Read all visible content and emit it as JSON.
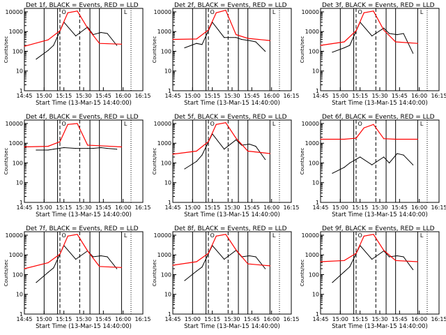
{
  "figure_title": "",
  "chart_data": [
    {
      "type": "line",
      "title": "Det 1f, BLACK = Events, RED = LLD",
      "xlabel": "Start Time (13-Mar-15 14:40:00)",
      "ylabel": "Counts/sec",
      "yscale": "log",
      "ylim": [
        1,
        15000
      ],
      "series": [
        {
          "name": "Events",
          "color": "#000000",
          "points": [
            [
              14.9,
              40
            ],
            [
              15.05,
              110
            ],
            [
              15.12,
              200
            ],
            [
              15.25,
              3000
            ],
            [
              15.4,
              600
            ],
            [
              15.55,
              1700
            ],
            [
              15.62,
              700
            ],
            [
              15.72,
              900
            ],
            [
              15.8,
              800
            ],
            [
              15.92,
              200
            ]
          ]
        },
        {
          "name": "LLD",
          "color": "#ff0000",
          "points": [
            [
              14.75,
              180
            ],
            [
              15.05,
              380
            ],
            [
              15.2,
              1100
            ],
            [
              15.3,
              9000
            ],
            [
              15.42,
              11000
            ],
            [
              15.55,
              1500
            ],
            [
              15.7,
              250
            ],
            [
              15.98,
              230
            ]
          ]
        }
      ]
    },
    {
      "type": "line",
      "title": "Det 2f, BLACK = Events, RED = LLD",
      "xlabel": "Start Time (13-Mar-15 14:40:00)",
      "ylabel": "Counts/sec",
      "yscale": "log",
      "ylim": [
        1,
        15000
      ],
      "series": [
        {
          "name": "Events",
          "color": "#000000",
          "points": [
            [
              14.9,
              150
            ],
            [
              15.05,
              250
            ],
            [
              15.12,
              220
            ],
            [
              15.25,
              3000
            ],
            [
              15.4,
              500
            ],
            [
              15.55,
              500
            ],
            [
              15.62,
              400
            ],
            [
              15.72,
              350
            ],
            [
              15.8,
              300
            ],
            [
              15.92,
              100
            ]
          ]
        },
        {
          "name": "LLD",
          "color": "#ff0000",
          "points": [
            [
              14.75,
              400
            ],
            [
              15.05,
              420
            ],
            [
              15.2,
              1200
            ],
            [
              15.3,
              9000
            ],
            [
              15.42,
              12000
            ],
            [
              15.55,
              700
            ],
            [
              15.7,
              450
            ],
            [
              15.98,
              350
            ]
          ]
        }
      ]
    },
    {
      "type": "line",
      "title": "Det 3f, BLACK = Events, RED = LLD",
      "xlabel": "Start Time (13-Mar-15 14:40:00)",
      "ylabel": "Counts/sec",
      "yscale": "log",
      "ylim": [
        1,
        15000
      ],
      "series": [
        {
          "name": "Events",
          "color": "#000000",
          "points": [
            [
              14.9,
              90
            ],
            [
              15.05,
              150
            ],
            [
              15.12,
              200
            ],
            [
              15.25,
              3000
            ],
            [
              15.4,
              600
            ],
            [
              15.55,
              1500
            ],
            [
              15.62,
              800
            ],
            [
              15.72,
              700
            ],
            [
              15.8,
              800
            ],
            [
              15.92,
              80
            ]
          ]
        },
        {
          "name": "LLD",
          "color": "#ff0000",
          "points": [
            [
              14.75,
              200
            ],
            [
              15.05,
              300
            ],
            [
              15.2,
              1100
            ],
            [
              15.3,
              9000
            ],
            [
              15.42,
              11000
            ],
            [
              15.55,
              1200
            ],
            [
              15.7,
              300
            ],
            [
              15.98,
              250
            ]
          ]
        }
      ]
    },
    {
      "type": "line",
      "title": "Det 4f, BLACK = Events, RED = LLD",
      "xlabel": "Start Time (13-Mar-15 14:40:00)",
      "ylabel": "Counts/sec",
      "yscale": "log",
      "ylim": [
        1,
        15000
      ],
      "series": [
        {
          "name": "Events",
          "color": "#000000",
          "points": [
            [
              14.9,
              450
            ],
            [
              15.05,
              450
            ],
            [
              15.12,
              500
            ],
            [
              15.25,
              600
            ],
            [
              15.4,
              550
            ],
            [
              15.55,
              550
            ],
            [
              15.62,
              550
            ],
            [
              15.72,
              600
            ],
            [
              15.8,
              550
            ],
            [
              15.92,
              500
            ]
          ]
        },
        {
          "name": "LLD",
          "color": "#ff0000",
          "points": [
            [
              14.75,
              650
            ],
            [
              15.05,
              700
            ],
            [
              15.2,
              1200
            ],
            [
              15.3,
              9000
            ],
            [
              15.42,
              10000
            ],
            [
              15.55,
              800
            ],
            [
              15.7,
              750
            ],
            [
              15.98,
              650
            ]
          ]
        }
      ]
    },
    {
      "type": "line",
      "title": "Det 5f, BLACK = Events, RED = LLD",
      "xlabel": "Start Time (13-Mar-15 14:40:00)",
      "ylabel": "Counts/sec",
      "yscale": "log",
      "ylim": [
        1,
        15000
      ],
      "series": [
        {
          "name": "Events",
          "color": "#000000",
          "points": [
            [
              14.9,
              50
            ],
            [
              15.05,
              120
            ],
            [
              15.12,
              250
            ],
            [
              15.25,
              3000
            ],
            [
              15.4,
              500
            ],
            [
              15.55,
              1500
            ],
            [
              15.62,
              800
            ],
            [
              15.72,
              900
            ],
            [
              15.8,
              700
            ],
            [
              15.92,
              150
            ]
          ]
        },
        {
          "name": "LLD",
          "color": "#ff0000",
          "points": [
            [
              14.75,
              280
            ],
            [
              15.05,
              400
            ],
            [
              15.2,
              1200
            ],
            [
              15.3,
              9000
            ],
            [
              15.42,
              11000
            ],
            [
              15.55,
              1800
            ],
            [
              15.7,
              400
            ],
            [
              15.98,
              300
            ]
          ]
        }
      ]
    },
    {
      "type": "line",
      "title": "Det 6f, BLACK = Events, RED = LLD",
      "xlabel": "Start Time (13-Mar-15 14:40:00)",
      "ylabel": "Counts/sec",
      "yscale": "log",
      "ylim": [
        1,
        15000
      ],
      "series": [
        {
          "name": "Events",
          "color": "#000000",
          "points": [
            [
              14.9,
              30
            ],
            [
              15.05,
              60
            ],
            [
              15.12,
              100
            ],
            [
              15.25,
              200
            ],
            [
              15.4,
              80
            ],
            [
              15.55,
              200
            ],
            [
              15.62,
              100
            ],
            [
              15.72,
              300
            ],
            [
              15.8,
              250
            ],
            [
              15.92,
              80
            ]
          ]
        },
        {
          "name": "LLD",
          "color": "#ff0000",
          "points": [
            [
              14.75,
              1600
            ],
            [
              15.05,
              1600
            ],
            [
              15.2,
              1800
            ],
            [
              15.3,
              6000
            ],
            [
              15.42,
              9000
            ],
            [
              15.55,
              1700
            ],
            [
              15.7,
              1600
            ],
            [
              15.98,
              1600
            ]
          ]
        }
      ]
    },
    {
      "type": "line",
      "title": "Det 7f, BLACK = Events, RED = LLD",
      "xlabel": "Start Time (13-Mar-15 14:40:00)",
      "ylabel": "Counts/sec",
      "yscale": "log",
      "ylim": [
        1,
        15000
      ],
      "series": [
        {
          "name": "Events",
          "color": "#000000",
          "points": [
            [
              14.9,
              40
            ],
            [
              15.05,
              130
            ],
            [
              15.12,
              220
            ],
            [
              15.25,
              3000
            ],
            [
              15.4,
              600
            ],
            [
              15.55,
              1600
            ],
            [
              15.62,
              800
            ],
            [
              15.72,
              900
            ],
            [
              15.8,
              800
            ],
            [
              15.92,
              200
            ]
          ]
        },
        {
          "name": "LLD",
          "color": "#ff0000",
          "points": [
            [
              14.75,
              200
            ],
            [
              15.05,
              400
            ],
            [
              15.2,
              1100
            ],
            [
              15.3,
              9000
            ],
            [
              15.42,
              11000
            ],
            [
              15.55,
              1600
            ],
            [
              15.7,
              260
            ],
            [
              15.98,
              230
            ]
          ]
        }
      ]
    },
    {
      "type": "line",
      "title": "Det 8f, BLACK = Events, RED = LLD",
      "xlabel": "Start Time (13-Mar-15 14:40:00)",
      "ylabel": "Counts/sec",
      "yscale": "log",
      "ylim": [
        1,
        15000
      ],
      "series": [
        {
          "name": "Events",
          "color": "#000000",
          "points": [
            [
              14.9,
              50
            ],
            [
              15.05,
              150
            ],
            [
              15.12,
              240
            ],
            [
              15.25,
              3000
            ],
            [
              15.4,
              600
            ],
            [
              15.55,
              1700
            ],
            [
              15.62,
              800
            ],
            [
              15.72,
              900
            ],
            [
              15.8,
              800
            ],
            [
              15.92,
              200
            ]
          ]
        },
        {
          "name": "LLD",
          "color": "#ff0000",
          "points": [
            [
              14.75,
              300
            ],
            [
              15.05,
              450
            ],
            [
              15.2,
              1200
            ],
            [
              15.3,
              9000
            ],
            [
              15.42,
              11000
            ],
            [
              15.55,
              1800
            ],
            [
              15.7,
              350
            ],
            [
              15.98,
              280
            ]
          ]
        }
      ]
    },
    {
      "type": "line",
      "title": "Det 9f, BLACK = Events, RED = LLD",
      "xlabel": "Start Time (13-Mar-15 14:40:00)",
      "ylabel": "Counts/sec",
      "yscale": "log",
      "ylim": [
        1,
        15000
      ],
      "series": [
        {
          "name": "Events",
          "color": "#000000",
          "points": [
            [
              14.9,
              40
            ],
            [
              15.05,
              140
            ],
            [
              15.12,
              250
            ],
            [
              15.25,
              3000
            ],
            [
              15.4,
              600
            ],
            [
              15.55,
              1600
            ],
            [
              15.62,
              800
            ],
            [
              15.72,
              900
            ],
            [
              15.8,
              800
            ],
            [
              15.92,
              180
            ]
          ]
        },
        {
          "name": "LLD",
          "color": "#ff0000",
          "points": [
            [
              14.75,
              450
            ],
            [
              15.05,
              520
            ],
            [
              15.2,
              1200
            ],
            [
              15.3,
              9000
            ],
            [
              15.42,
              11000
            ],
            [
              15.55,
              1700
            ],
            [
              15.7,
              520
            ],
            [
              15.98,
              450
            ]
          ]
        }
      ]
    }
  ],
  "axis": {
    "x_ticks": [
      14.75,
      15.0,
      15.25,
      15.5,
      15.75,
      16.0,
      16.25
    ],
    "x_tick_labels": [
      "14:45",
      "15:00",
      "15:15",
      "15:30",
      "15:45",
      "16:00",
      "16:15"
    ],
    "x_range": [
      14.75,
      16.25
    ],
    "y_ticks": [
      1,
      10,
      100,
      1000,
      10000
    ],
    "y_tick_labels": [
      "1",
      "10",
      "100",
      "1000",
      "10000"
    ],
    "solid_markers": [
      15.0,
      15.17,
      15.58,
      15.7,
      15.98
    ],
    "dashed_markers": [
      15.2,
      15.45
    ],
    "dotted_markers": [
      16.1,
      16.25
    ],
    "marker_labels": [
      "O",
      "L"
    ]
  }
}
